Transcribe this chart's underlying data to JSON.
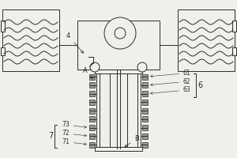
{
  "bg_color": "#f0f0eb",
  "line_color": "#2a2a2a",
  "figsize": [
    3.0,
    2.0
  ],
  "dpi": 100
}
